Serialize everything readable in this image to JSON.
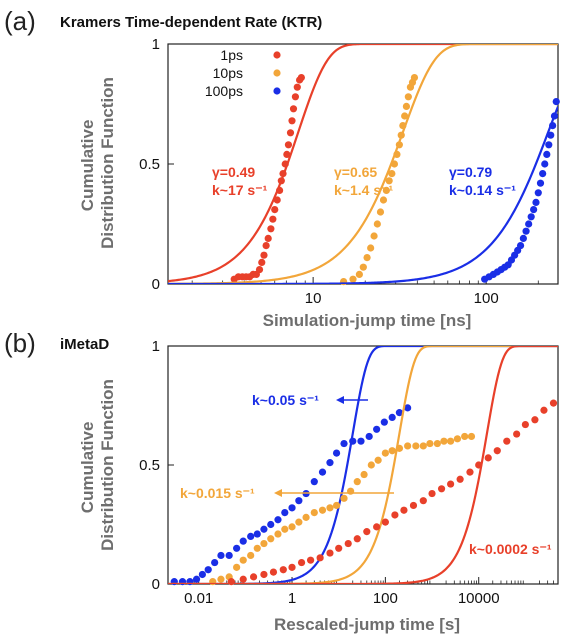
{
  "chart_data": [
    {
      "type": "scatter",
      "panel_letter": "(a)",
      "title": "Kramers Time-dependent Rate (KTR)",
      "xlabel": "Simulation-jump time [ns]",
      "ylabel_lines": [
        "Cumulative",
        "Distribution Function"
      ],
      "xscale": "log",
      "xlim": [
        1.45,
        260
      ],
      "ylim": [
        0,
        1
      ],
      "xticks": [
        {
          "v": 10,
          "label": "10"
        },
        {
          "v": 100,
          "label": "100"
        }
      ],
      "yticks": [
        {
          "v": 0,
          "label": "0"
        },
        {
          "v": 0.5,
          "label": "0.5"
        },
        {
          "v": 1,
          "label": "1"
        }
      ],
      "grid": false,
      "legend_position": "top-left",
      "series": [
        {
          "name": "1ps",
          "color": "#e8402a",
          "fit_curve": {
            "tau": 8.2,
            "k": 2.55
          },
          "points": [
            [
              3.5,
              0.02
            ],
            [
              3.7,
              0.03
            ],
            [
              3.9,
              0.03
            ],
            [
              4.1,
              0.03
            ],
            [
              4.3,
              0.03
            ],
            [
              4.5,
              0.04
            ],
            [
              4.7,
              0.04
            ],
            [
              4.9,
              0.06
            ],
            [
              5.05,
              0.09
            ],
            [
              5.2,
              0.12
            ],
            [
              5.35,
              0.16
            ],
            [
              5.5,
              0.19
            ],
            [
              5.7,
              0.23
            ],
            [
              5.85,
              0.27
            ],
            [
              6.0,
              0.31
            ],
            [
              6.2,
              0.35
            ],
            [
              6.4,
              0.39
            ],
            [
              6.55,
              0.43
            ],
            [
              6.7,
              0.46
            ],
            [
              6.9,
              0.5
            ],
            [
              7.05,
              0.54
            ],
            [
              7.2,
              0.58
            ],
            [
              7.4,
              0.63
            ],
            [
              7.55,
              0.68
            ],
            [
              7.7,
              0.73
            ],
            [
              7.9,
              0.78
            ],
            [
              8.1,
              0.82
            ],
            [
              8.35,
              0.85
            ],
            [
              8.55,
              0.86
            ]
          ]
        },
        {
          "name": "10ps",
          "color": "#f2a63a",
          "fit_curve": {
            "tau": 33,
            "k": 2.35
          },
          "points": [
            [
              15,
              0.01
            ],
            [
              17,
              0.02
            ],
            [
              18.5,
              0.04
            ],
            [
              19.5,
              0.07
            ],
            [
              20.5,
              0.11
            ],
            [
              21.5,
              0.15
            ],
            [
              22.5,
              0.2
            ],
            [
              23.5,
              0.25
            ],
            [
              24.5,
              0.3
            ],
            [
              25.5,
              0.35
            ],
            [
              26.5,
              0.39
            ],
            [
              27.5,
              0.43
            ],
            [
              28.5,
              0.46
            ],
            [
              29.5,
              0.5
            ],
            [
              30.5,
              0.54
            ],
            [
              31.5,
              0.58
            ],
            [
              32.3,
              0.62
            ],
            [
              33,
              0.66
            ],
            [
              33.8,
              0.7
            ],
            [
              34.6,
              0.74
            ],
            [
              35.5,
              0.78
            ],
            [
              36.5,
              0.82
            ],
            [
              37.5,
              0.84
            ],
            [
              38.5,
              0.86
            ]
          ]
        },
        {
          "name": "100ps",
          "color": "#1a2ee6",
          "fit_curve": {
            "tau": 228,
            "k": 2.25
          },
          "points": [
            [
              98,
              0.02
            ],
            [
              104,
              0.03
            ],
            [
              110,
              0.04
            ],
            [
              116,
              0.05
            ],
            [
              122,
              0.06
            ],
            [
              128,
              0.07
            ],
            [
              134,
              0.08
            ],
            [
              140,
              0.1
            ],
            [
              146,
              0.12
            ],
            [
              152,
              0.14
            ],
            [
              158,
              0.16
            ],
            [
              164,
              0.19
            ],
            [
              170,
              0.22
            ],
            [
              176,
              0.25
            ],
            [
              182,
              0.28
            ],
            [
              188,
              0.31
            ],
            [
              194,
              0.34
            ],
            [
              200,
              0.38
            ],
            [
              206,
              0.42
            ],
            [
              212,
              0.46
            ],
            [
              218,
              0.5
            ],
            [
              224,
              0.54
            ],
            [
              230,
              0.58
            ],
            [
              236,
              0.62
            ],
            [
              242,
              0.66
            ],
            [
              248,
              0.7
            ],
            [
              254,
              0.76
            ]
          ]
        }
      ],
      "annotations": [
        {
          "lines": [
            "γ=0.49",
            "k~17 s⁻¹"
          ],
          "color": "#e8402a"
        },
        {
          "lines": [
            "γ=0.65",
            "k~1.4 s⁻¹"
          ],
          "color": "#f2a63a"
        },
        {
          "lines": [
            "γ=0.79",
            "k~0.14 s⁻¹"
          ],
          "color": "#1a2ee6"
        }
      ]
    },
    {
      "type": "scatter",
      "panel_letter": "(b)",
      "title": "iMetaD",
      "xlabel": "Rescaled-jump time [s]",
      "ylabel_lines": [
        "Cumulative",
        "Distribution Function"
      ],
      "xscale": "log",
      "xlim": [
        0.0022,
        500000
      ],
      "ylim": [
        0,
        1
      ],
      "xticks": [
        {
          "v": 0.01,
          "label": "0.01"
        },
        {
          "v": 1,
          "label": "1"
        },
        {
          "v": 100,
          "label": "100"
        },
        {
          "v": 10000,
          "label": "10000"
        }
      ],
      "yticks": [
        {
          "v": 0,
          "label": "0"
        },
        {
          "v": 0.5,
          "label": "0.5"
        },
        {
          "v": 1,
          "label": "1"
        }
      ],
      "grid": false,
      "series": [
        {
          "color": "#1a2ee6",
          "fit_curve": {
            "tau": 20,
            "k": 1.35
          },
          "points": [
            [
              0.003,
              0.01
            ],
            [
              0.0045,
              0.01
            ],
            [
              0.0065,
              0.01
            ],
            [
              0.009,
              0.02
            ],
            [
              0.012,
              0.04
            ],
            [
              0.016,
              0.06
            ],
            [
              0.022,
              0.09
            ],
            [
              0.03,
              0.12
            ],
            [
              0.045,
              0.12
            ],
            [
              0.065,
              0.15
            ],
            [
              0.09,
              0.18
            ],
            [
              0.13,
              0.2
            ],
            [
              0.18,
              0.21
            ],
            [
              0.25,
              0.23
            ],
            [
              0.35,
              0.25
            ],
            [
              0.5,
              0.27
            ],
            [
              0.7,
              0.3
            ],
            [
              1.0,
              0.32
            ],
            [
              1.4,
              0.35
            ],
            [
              2.0,
              0.38
            ],
            [
              3.0,
              0.43
            ],
            [
              4.5,
              0.47
            ],
            [
              6.5,
              0.51
            ],
            [
              9,
              0.55
            ],
            [
              13,
              0.59
            ],
            [
              20,
              0.6
            ],
            [
              30,
              0.6
            ],
            [
              45,
              0.62
            ],
            [
              65,
              0.65
            ],
            [
              95,
              0.68
            ],
            [
              140,
              0.7
            ],
            [
              200,
              0.72
            ],
            [
              300,
              0.74
            ]
          ]
        },
        {
          "color": "#f2a63a",
          "fit_curve": {
            "tau": 200,
            "k": 1.35
          },
          "points": [
            [
              0.02,
              0.01
            ],
            [
              0.03,
              0.02
            ],
            [
              0.045,
              0.03
            ],
            [
              0.065,
              0.07
            ],
            [
              0.09,
              0.1
            ],
            [
              0.13,
              0.12
            ],
            [
              0.18,
              0.15
            ],
            [
              0.25,
              0.17
            ],
            [
              0.35,
              0.19
            ],
            [
              0.5,
              0.21
            ],
            [
              0.7,
              0.23
            ],
            [
              1.0,
              0.24
            ],
            [
              1.4,
              0.26
            ],
            [
              2.0,
              0.28
            ],
            [
              3.0,
              0.3
            ],
            [
              4.5,
              0.31
            ],
            [
              6.5,
              0.32
            ],
            [
              9,
              0.33
            ],
            [
              13,
              0.36
            ],
            [
              18,
              0.39
            ],
            [
              25,
              0.43
            ],
            [
              35,
              0.46
            ],
            [
              50,
              0.5
            ],
            [
              70,
              0.52
            ],
            [
              100,
              0.55
            ],
            [
              140,
              0.56
            ],
            [
              200,
              0.57
            ],
            [
              300,
              0.58
            ],
            [
              450,
              0.58
            ],
            [
              650,
              0.58
            ],
            [
              900,
              0.59
            ],
            [
              1300,
              0.59
            ],
            [
              1800,
              0.6
            ],
            [
              2500,
              0.6
            ],
            [
              3500,
              0.61
            ],
            [
              5000,
              0.62
            ],
            [
              7000,
              0.62
            ]
          ]
        },
        {
          "color": "#e8402a",
          "fit_curve": {
            "tau": 15000,
            "k": 1.35
          },
          "points": [
            [
              0.05,
              0.01
            ],
            [
              0.09,
              0.02
            ],
            [
              0.15,
              0.03
            ],
            [
              0.25,
              0.04
            ],
            [
              0.4,
              0.05
            ],
            [
              0.65,
              0.06
            ],
            [
              1.0,
              0.07
            ],
            [
              1.6,
              0.09
            ],
            [
              2.5,
              0.1
            ],
            [
              4,
              0.11
            ],
            [
              6.5,
              0.13
            ],
            [
              10,
              0.15
            ],
            [
              16,
              0.17
            ],
            [
              25,
              0.19
            ],
            [
              40,
              0.22
            ],
            [
              65,
              0.24
            ],
            [
              100,
              0.26
            ],
            [
              160,
              0.29
            ],
            [
              250,
              0.31
            ],
            [
              400,
              0.33
            ],
            [
              650,
              0.35
            ],
            [
              1000,
              0.38
            ],
            [
              1600,
              0.4
            ],
            [
              2500,
              0.42
            ],
            [
              4000,
              0.44
            ],
            [
              6500,
              0.47
            ],
            [
              10000,
              0.5
            ],
            [
              16000,
              0.53
            ],
            [
              25000,
              0.56
            ],
            [
              40000,
              0.6
            ],
            [
              65000,
              0.63
            ],
            [
              100000,
              0.67
            ],
            [
              160000,
              0.69
            ],
            [
              250000,
              0.73
            ],
            [
              400000,
              0.76
            ]
          ]
        }
      ],
      "annotations": [
        {
          "text": "k~0.05 s⁻¹",
          "color": "#1a2ee6"
        },
        {
          "text": "k~0.015 s⁻¹",
          "color": "#f2a63a"
        },
        {
          "text": "k~0.0002 s⁻¹",
          "color": "#e8402a"
        }
      ]
    }
  ]
}
